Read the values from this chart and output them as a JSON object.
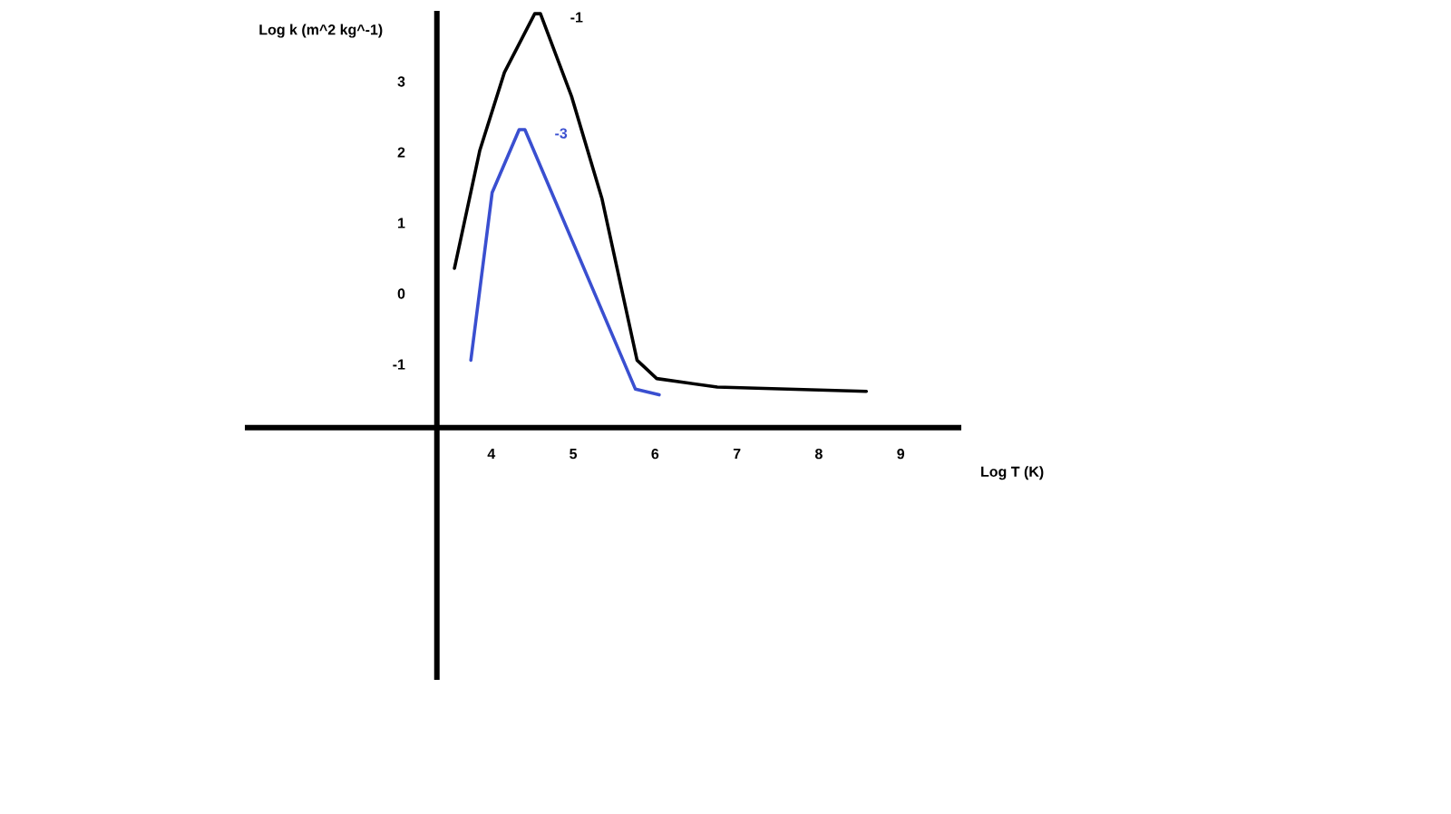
{
  "chart_data": {
    "type": "line",
    "xlabel": "Log T (K)",
    "ylabel": "Log k (m^2 kg^-1)",
    "xlim": [
      0.99,
      9.74
    ],
    "ylim": [
      -5.46,
      4.0
    ],
    "xticks": [
      4,
      5,
      6,
      7,
      8,
      9
    ],
    "yticks": [
      -1,
      0,
      1,
      2,
      3
    ],
    "series": [
      {
        "name": "-1",
        "color": "#000000",
        "x": [
          3.55,
          3.86,
          4.16,
          4.53,
          4.6,
          4.98,
          5.35,
          5.78,
          6.02,
          6.76,
          8.58
        ],
        "values": [
          0.36,
          2.03,
          3.13,
          3.96,
          3.96,
          2.79,
          1.35,
          -0.94,
          -1.2,
          -1.32,
          -1.38
        ]
      },
      {
        "name": "-3",
        "color": "#3a4fd0",
        "x": [
          3.75,
          4.01,
          4.34,
          4.41,
          5.76,
          6.05
        ],
        "values": [
          -0.94,
          1.43,
          2.32,
          2.32,
          -1.35,
          -1.43
        ]
      }
    ]
  }
}
